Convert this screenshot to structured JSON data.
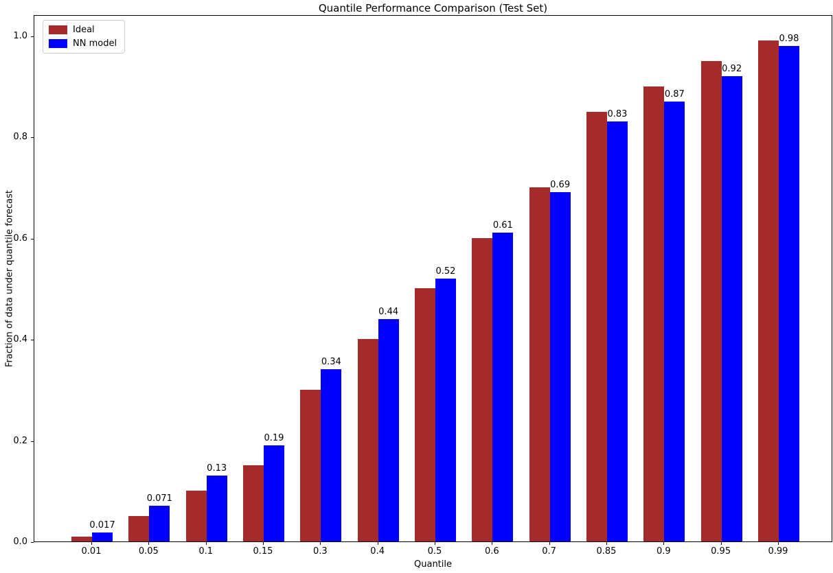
{
  "chart_data": {
    "type": "bar",
    "title": "Quantile Performance Comparison (Test Set)",
    "xlabel": "Quantile",
    "ylabel": "Fraction of data under quantile forecast",
    "categories": [
      "0.01",
      "0.05",
      "0.1",
      "0.15",
      "0.3",
      "0.4",
      "0.5",
      "0.6",
      "0.7",
      "0.85",
      "0.9",
      "0.95",
      "0.99"
    ],
    "series": [
      {
        "name": "Ideal",
        "color": "#A52A2A",
        "values": [
          0.01,
          0.05,
          0.1,
          0.15,
          0.3,
          0.4,
          0.5,
          0.6,
          0.7,
          0.85,
          0.9,
          0.95,
          0.99
        ]
      },
      {
        "name": "NN model",
        "color": "#0000FF",
        "values": [
          0.017,
          0.071,
          0.13,
          0.19,
          0.34,
          0.44,
          0.52,
          0.61,
          0.69,
          0.83,
          0.87,
          0.92,
          0.98
        ],
        "bar_labels": [
          "0.017",
          "0.071",
          "0.13",
          "0.19",
          "0.34",
          "0.44",
          "0.52",
          "0.61",
          "0.69",
          "0.83",
          "0.87",
          "0.92",
          "0.98"
        ]
      }
    ],
    "yticks": [
      "0.0",
      "0.2",
      "0.4",
      "0.6",
      "0.8",
      "1.0"
    ],
    "ylim": [
      0,
      1.042
    ],
    "grid": false,
    "legend_position": "upper left"
  }
}
